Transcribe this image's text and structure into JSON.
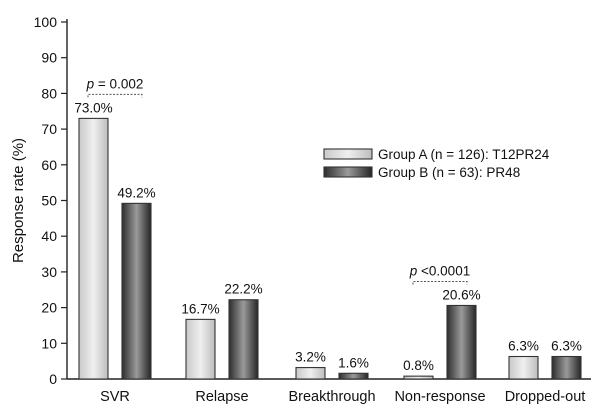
{
  "chart_data": {
    "type": "bar",
    "title": "",
    "xlabel": "",
    "ylabel": "Response rate (%)",
    "ylim": [
      0,
      100
    ],
    "yticks": [
      0,
      10,
      20,
      30,
      40,
      50,
      60,
      70,
      80,
      90,
      100
    ],
    "categories": [
      "SVR",
      "Relapse",
      "Breakthrough",
      "Non-response",
      "Dropped-out"
    ],
    "series": [
      {
        "name": "Group A (n = 126): T12PR24",
        "values": [
          73.0,
          16.7,
          3.2,
          0.8,
          6.3
        ],
        "labels": [
          "73.0%",
          "16.7%",
          "3.2%",
          "0.8%",
          "6.3%"
        ],
        "color": "#d8d8d8"
      },
      {
        "name": "Group B (n = 63): PR48",
        "values": [
          49.2,
          22.2,
          1.6,
          20.6,
          6.3
        ],
        "labels": [
          "49.2%",
          "22.2%",
          "1.6%",
          "20.6%",
          "6.3%"
        ],
        "color": "#4a4a4a"
      }
    ],
    "annotations": [
      {
        "category_index": 0,
        "p_symbol": "p",
        "p_text": " = 0.002"
      },
      {
        "category_index": 3,
        "p_symbol": "p",
        "p_text": " <0.0001"
      }
    ],
    "legend": "right",
    "grid": false
  }
}
